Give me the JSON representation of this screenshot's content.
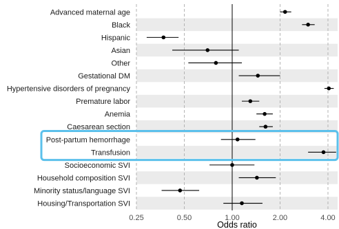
{
  "chart_data": {
    "type": "scatter",
    "xlabel": "Odds ratio",
    "x_scale": "log",
    "xlim": [
      0.25,
      4.6
    ],
    "reference_line": 1.0,
    "x_ticks": [
      {
        "value": 0.25,
        "label": "0.25"
      },
      {
        "value": 0.5,
        "label": "0.50"
      },
      {
        "value": 1.0,
        "label": "1.00"
      },
      {
        "value": 2.0,
        "label": "2.00"
      },
      {
        "value": 4.0,
        "label": "4.00"
      }
    ],
    "grid": "vertical dashed",
    "rows": [
      {
        "label": "Advanced maternal age",
        "or": 2.15,
        "lo": 2.0,
        "hi": 2.35
      },
      {
        "label": "Black",
        "or": 3.0,
        "lo": 2.75,
        "hi": 3.3
      },
      {
        "label": "Hispanic",
        "or": 0.37,
        "lo": 0.29,
        "hi": 0.46
      },
      {
        "label": "Asian",
        "or": 0.7,
        "lo": 0.42,
        "hi": 1.1
      },
      {
        "label": "Other",
        "or": 0.79,
        "lo": 0.53,
        "hi": 1.15
      },
      {
        "label": "Gestational DM",
        "or": 1.45,
        "lo": 1.1,
        "hi": 2.0
      },
      {
        "label": "Hypertensive disorders of pregnancy",
        "or": 4.05,
        "lo": 3.8,
        "hi": 4.35
      },
      {
        "label": "Premature labor",
        "or": 1.3,
        "lo": 1.15,
        "hi": 1.48
      },
      {
        "label": "Anemia",
        "or": 1.6,
        "lo": 1.42,
        "hi": 1.8
      },
      {
        "label": "Caesarean section",
        "or": 1.62,
        "lo": 1.48,
        "hi": 1.8
      },
      {
        "label": "Post-partum hemorrhage",
        "or": 1.08,
        "lo": 0.85,
        "hi": 1.4
      },
      {
        "label": "Transfusion",
        "or": 3.75,
        "lo": 3.0,
        "hi": 4.5
      },
      {
        "label": "Socioeconomic SVI",
        "or": 1.0,
        "lo": 0.72,
        "hi": 1.38
      },
      {
        "label": "Household composition SVI",
        "or": 1.43,
        "lo": 1.1,
        "hi": 1.88
      },
      {
        "label": "Minority status/language SVI",
        "or": 0.47,
        "lo": 0.36,
        "hi": 0.62
      },
      {
        "label": "Housing/Transportation SVI",
        "or": 1.15,
        "lo": 0.88,
        "hi": 1.55
      }
    ],
    "highlighted_rows": [
      "Post-partum hemorrhage",
      "Transfusion"
    ],
    "colors": {
      "band": "#ebebeb",
      "gridline": "#b3b3b3",
      "reference_line": "#000000",
      "point": "#000000",
      "highlight_box": "#5bc0eb"
    }
  }
}
